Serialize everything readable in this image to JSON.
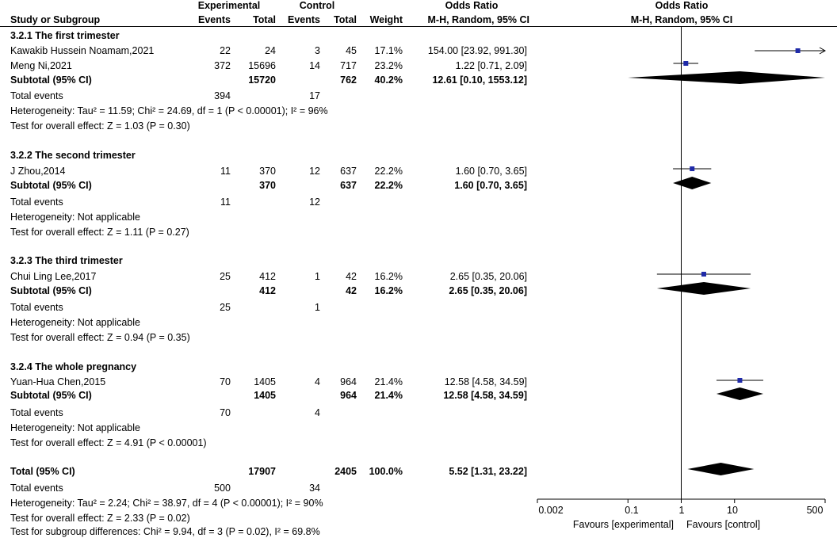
{
  "headers": {
    "study": "Study or Subgroup",
    "experimental": "Experimental",
    "control": "Control",
    "events": "Events",
    "total": "Total",
    "weight": "Weight",
    "odds_ratio": "Odds Ratio",
    "method": "M-H, Random, 95% CI",
    "plot_title": "Odds Ratio",
    "plot_method": "M-H, Random, 95% CI"
  },
  "groups": [
    {
      "title": "3.2.1 The first trimester",
      "studies": [
        {
          "name": "Kawakib Hussein Noamam,2021",
          "exp_events": "22",
          "exp_total": "24",
          "ctl_events": "3",
          "ctl_total": "45",
          "weight": "17.1%",
          "ci": "154.00 [23.92, 991.30]"
        },
        {
          "name": "Meng Ni,2021",
          "exp_events": "372",
          "exp_total": "15696",
          "ctl_events": "14",
          "ctl_total": "717",
          "weight": "23.2%",
          "ci": "1.22 [0.71, 2.09]"
        }
      ],
      "subtotal": {
        "label": "Subtotal (95% CI)",
        "exp_total": "15720",
        "ctl_total": "762",
        "weight": "40.2%",
        "ci": "12.61 [0.10, 1553.12]"
      },
      "total_events": {
        "label": "Total events",
        "exp": "394",
        "ctl": "17"
      },
      "heterogeneity": "Heterogeneity: Tau² = 11.59; Chi² = 24.69, df = 1 (P < 0.00001); I² = 96%",
      "overall_effect": "Test for overall effect: Z = 1.03 (P = 0.30)"
    },
    {
      "title": "3.2.2 The second trimester",
      "studies": [
        {
          "name": "J Zhou,2014",
          "exp_events": "11",
          "exp_total": "370",
          "ctl_events": "12",
          "ctl_total": "637",
          "weight": "22.2%",
          "ci": "1.60 [0.70, 3.65]"
        }
      ],
      "subtotal": {
        "label": "Subtotal (95% CI)",
        "exp_total": "370",
        "ctl_total": "637",
        "weight": "22.2%",
        "ci": "1.60 [0.70, 3.65]"
      },
      "total_events": {
        "label": "Total events",
        "exp": "11",
        "ctl": "12"
      },
      "heterogeneity": "Heterogeneity: Not applicable",
      "overall_effect": "Test for overall effect: Z = 1.11 (P = 0.27)"
    },
    {
      "title": "3.2.3 The third trimester",
      "studies": [
        {
          "name": "Chui Ling Lee,2017",
          "exp_events": "25",
          "exp_total": "412",
          "ctl_events": "1",
          "ctl_total": "42",
          "weight": "16.2%",
          "ci": "2.65 [0.35, 20.06]"
        }
      ],
      "subtotal": {
        "label": "Subtotal (95% CI)",
        "exp_total": "412",
        "ctl_total": "42",
        "weight": "16.2%",
        "ci": "2.65 [0.35, 20.06]"
      },
      "total_events": {
        "label": "Total events",
        "exp": "25",
        "ctl": "1"
      },
      "heterogeneity": "Heterogeneity: Not applicable",
      "overall_effect": "Test for overall effect: Z = 0.94 (P = 0.35)"
    },
    {
      "title": "3.2.4 The whole pregnancy",
      "studies": [
        {
          "name": "Yuan-Hua Chen,2015",
          "exp_events": "70",
          "exp_total": "1405",
          "ctl_events": "4",
          "ctl_total": "964",
          "weight": "21.4%",
          "ci": "12.58 [4.58, 34.59]"
        }
      ],
      "subtotal": {
        "label": "Subtotal (95% CI)",
        "exp_total": "1405",
        "ctl_total": "964",
        "weight": "21.4%",
        "ci": "12.58 [4.58, 34.59]"
      },
      "total_events": {
        "label": "Total events",
        "exp": "70",
        "ctl": "4"
      },
      "heterogeneity": "Heterogeneity: Not applicable",
      "overall_effect": "Test for overall effect: Z = 4.91 (P < 0.00001)"
    }
  ],
  "overall": {
    "label": "Total (95% CI)",
    "exp_total": "17907",
    "ctl_total": "2405",
    "weight": "100.0%",
    "ci": "5.52 [1.31, 23.22]",
    "total_events": {
      "label": "Total events",
      "exp": "500",
      "ctl": "34"
    },
    "heterogeneity": "Heterogeneity: Tau² = 2.24; Chi² = 38.97, df = 4 (P < 0.00001); I² = 90%",
    "overall_effect": "Test for overall effect: Z = 2.33 (P = 0.02)",
    "subgroup_diff": "Test for subgroup differences: Chi² = 9.94, df = 3 (P = 0.02), I² = 69.8%"
  },
  "axis": {
    "ticks": [
      "0.002",
      "0.1",
      "1",
      "10",
      "500"
    ],
    "left_label": "Favours [experimental]",
    "right_label": "Favours [control]"
  },
  "colors": {
    "study_marker": "#1f2aa8",
    "diamond": "#000000"
  },
  "chart_data": {
    "type": "forest",
    "scale": "log",
    "xlim": [
      0.002,
      500
    ],
    "ticks": [
      0.002,
      0.1,
      1,
      10,
      500
    ],
    "xlabel_left": "Favours [experimental]",
    "xlabel_right": "Favours [control]",
    "studies": [
      {
        "name": "Kawakib Hussein Noamam,2021",
        "or": 154.0,
        "lo": 23.92,
        "hi": 991.3,
        "weight": 17.1
      },
      {
        "name": "Meng Ni,2021",
        "or": 1.22,
        "lo": 0.71,
        "hi": 2.09,
        "weight": 23.2
      },
      {
        "name": "J Zhou,2014",
        "or": 1.6,
        "lo": 0.7,
        "hi": 3.65,
        "weight": 22.2
      },
      {
        "name": "Chui Ling Lee,2017",
        "or": 2.65,
        "lo": 0.35,
        "hi": 20.06,
        "weight": 16.2
      },
      {
        "name": "Yuan-Hua Chen,2015",
        "or": 12.58,
        "lo": 4.58,
        "hi": 34.59,
        "weight": 21.4
      }
    ],
    "subtotals": [
      {
        "name": "3.2.1 The first trimester",
        "or": 12.61,
        "lo": 0.1,
        "hi": 1553.12
      },
      {
        "name": "3.2.2 The second trimester",
        "or": 1.6,
        "lo": 0.7,
        "hi": 3.65
      },
      {
        "name": "3.2.3 The third trimester",
        "or": 2.65,
        "lo": 0.35,
        "hi": 20.06
      },
      {
        "name": "3.2.4 The whole pregnancy",
        "or": 12.58,
        "lo": 4.58,
        "hi": 34.59
      }
    ],
    "overall": {
      "name": "Total (95% CI)",
      "or": 5.52,
      "lo": 1.31,
      "hi": 23.22
    }
  }
}
